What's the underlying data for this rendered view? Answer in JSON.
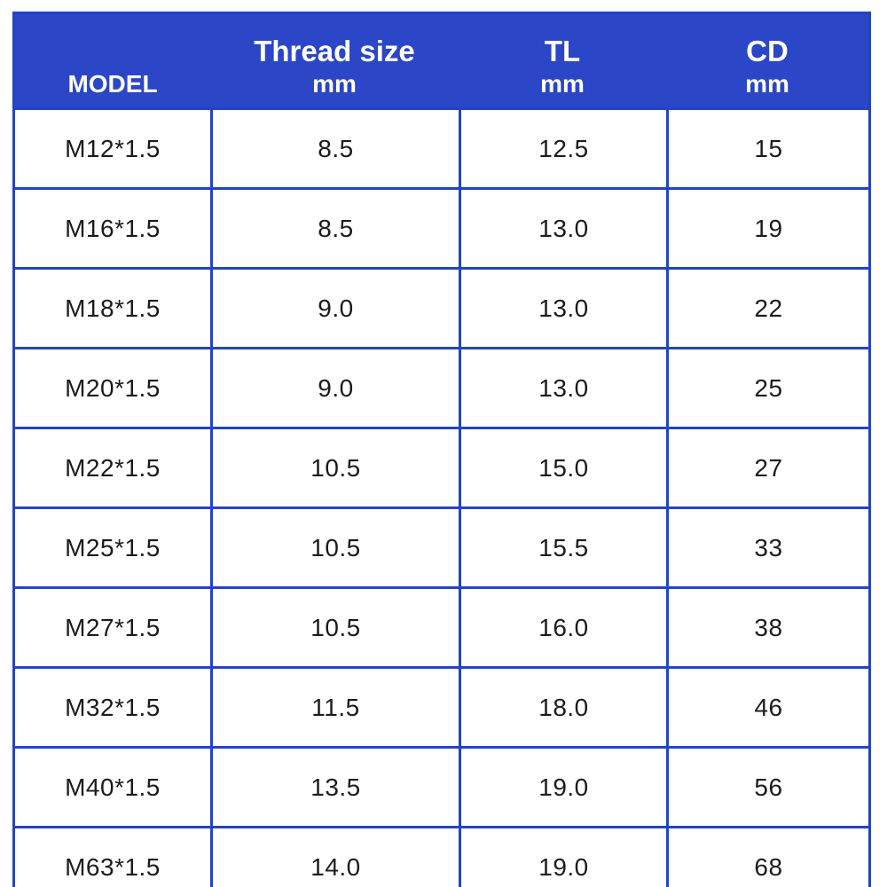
{
  "colors": {
    "header_bg": "#2b46c6",
    "border": "#2443c6",
    "header_text": "#ffffff",
    "body_text": "#1b1b1b",
    "background": "#ffffff"
  },
  "chart_data": {
    "type": "table",
    "title": "",
    "columns": [
      {
        "label": "MODEL",
        "unit": ""
      },
      {
        "label": "Thread size",
        "unit": "mm"
      },
      {
        "label": "TL",
        "unit": "mm"
      },
      {
        "label": "CD",
        "unit": "mm"
      }
    ],
    "rows": [
      [
        "M12*1.5",
        "8.5",
        "12.5",
        "15"
      ],
      [
        "M16*1.5",
        "8.5",
        "13.0",
        "19"
      ],
      [
        "M18*1.5",
        "9.0",
        "13.0",
        "22"
      ],
      [
        "M20*1.5",
        "9.0",
        "13.0",
        "25"
      ],
      [
        "M22*1.5",
        "10.5",
        "15.0",
        "27"
      ],
      [
        "M25*1.5",
        "10.5",
        "15.5",
        "33"
      ],
      [
        "M27*1.5",
        "10.5",
        "16.0",
        "38"
      ],
      [
        "M32*1.5",
        "11.5",
        "18.0",
        "46"
      ],
      [
        "M40*1.5",
        "13.5",
        "19.0",
        "56"
      ],
      [
        "M63*1.5",
        "14.0",
        "19.0",
        "68"
      ]
    ]
  }
}
